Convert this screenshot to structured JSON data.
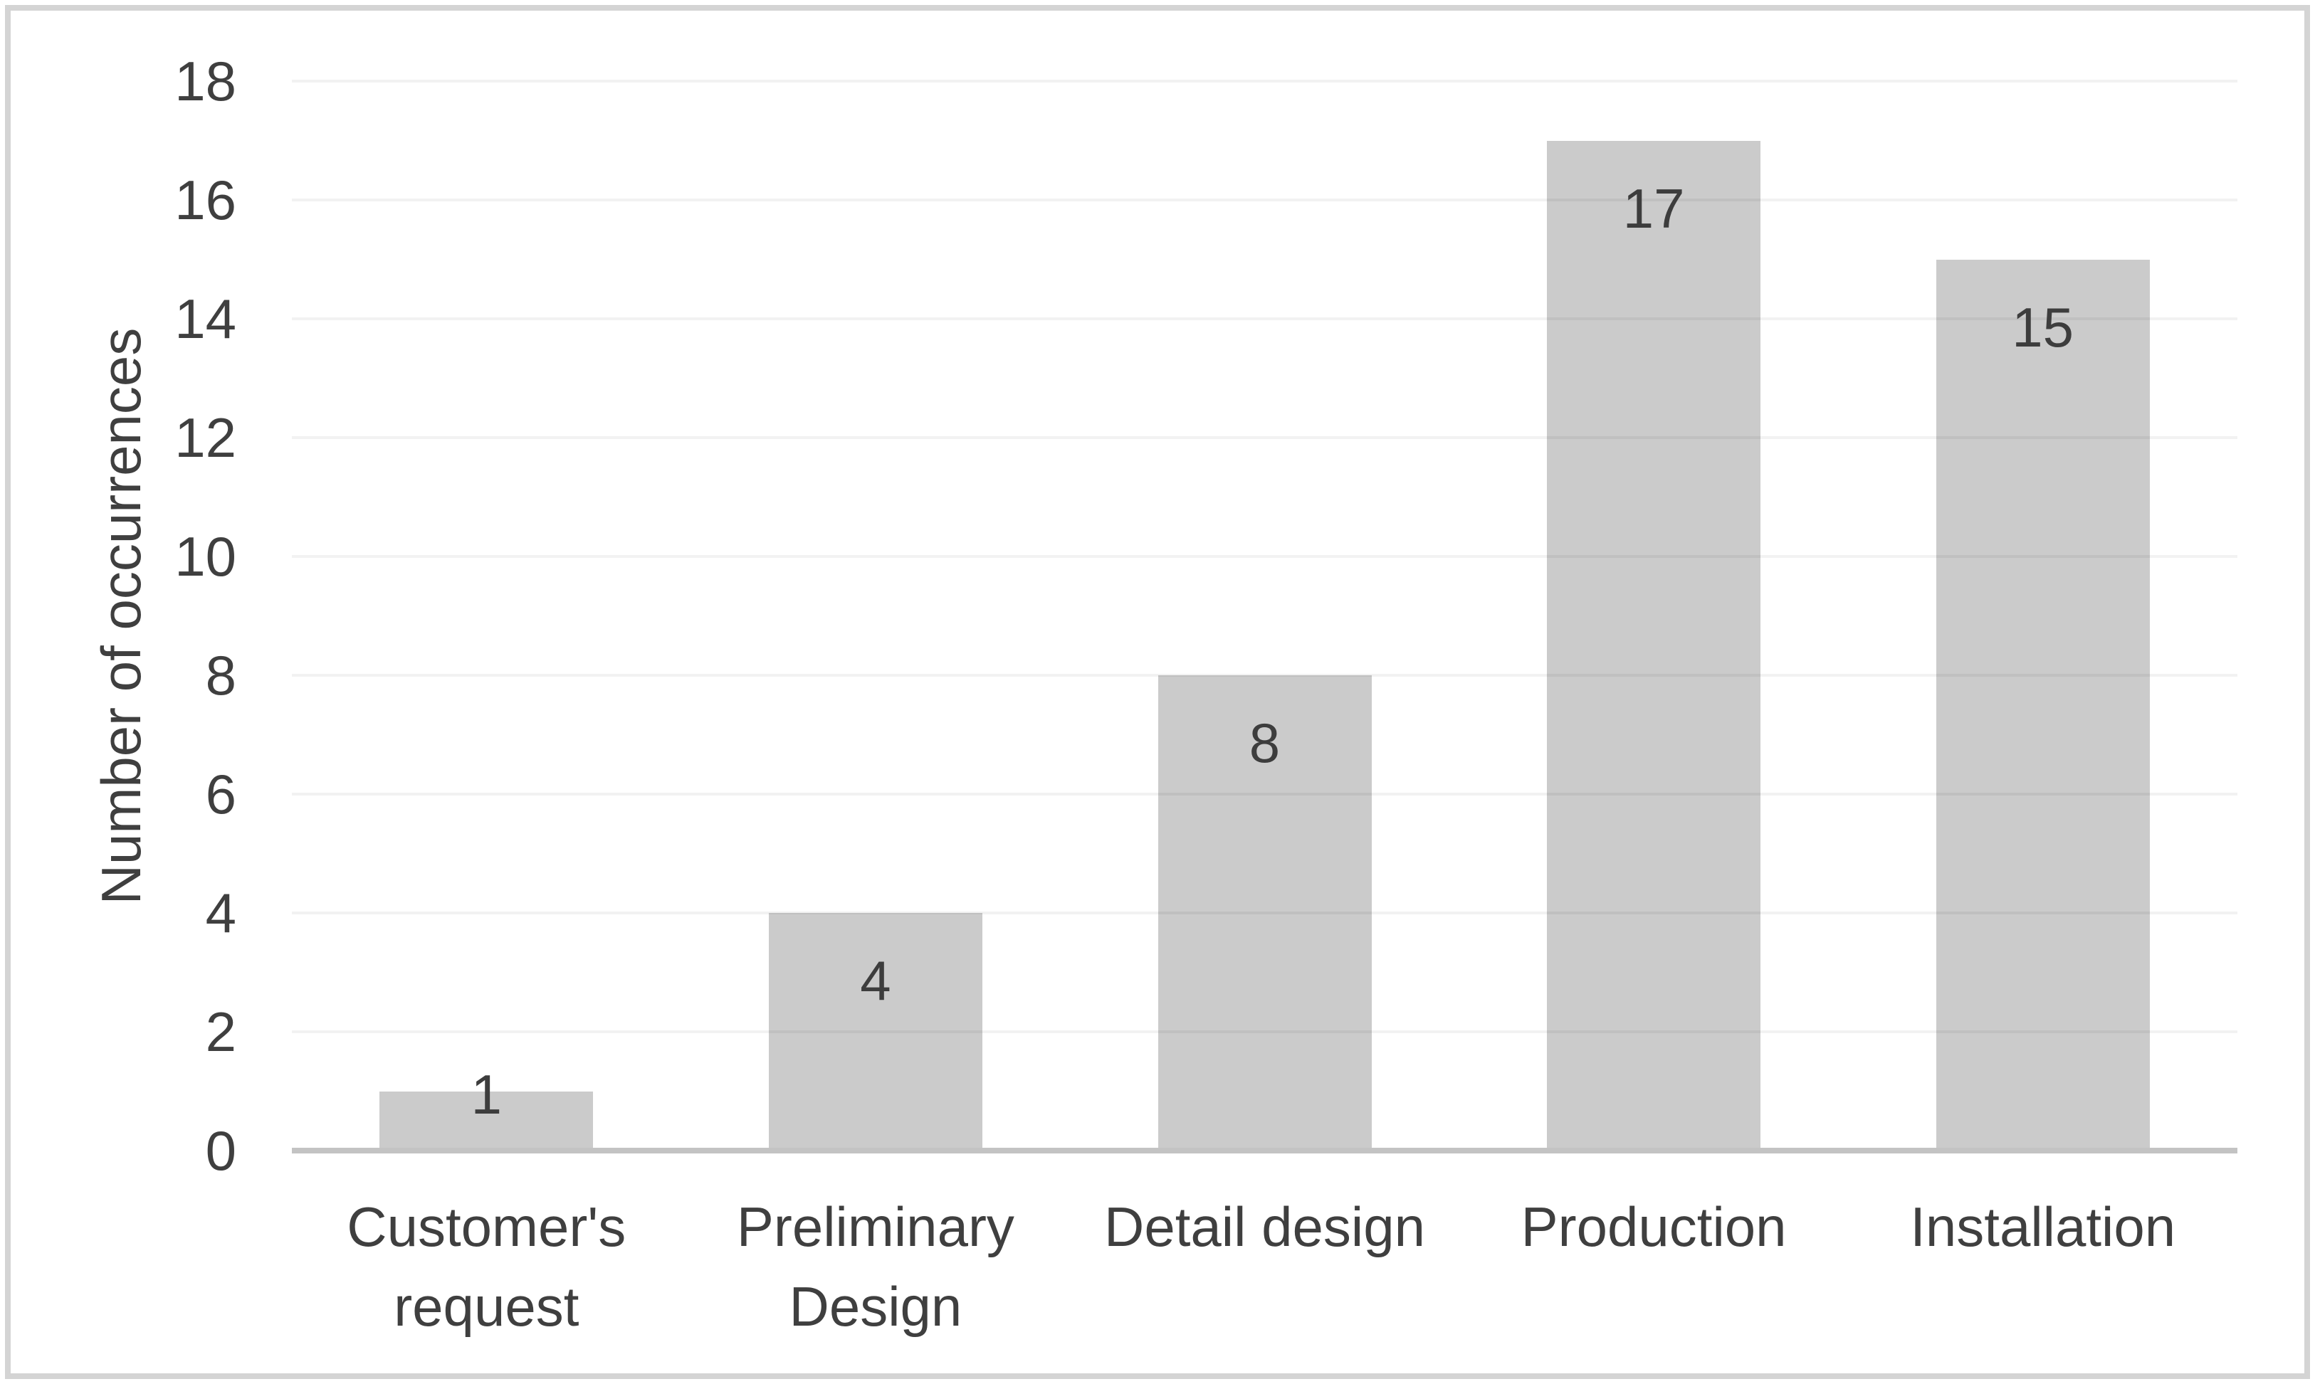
{
  "chart_data": {
    "type": "bar",
    "categories": [
      "Customer's request",
      "Preliminary Design",
      "Detail design",
      "Production",
      "Installation"
    ],
    "values": [
      1,
      4,
      8,
      17,
      15
    ],
    "data_labels": [
      "1",
      "4",
      "8",
      "17",
      "15"
    ],
    "title": "",
    "xlabel": "",
    "ylabel": "Number of occurrences",
    "ylim": [
      0,
      18
    ],
    "yticks": [
      0,
      2,
      4,
      6,
      8,
      10,
      12,
      14,
      16,
      18
    ],
    "grid": true,
    "legend_position": "none",
    "bar_color": "#cbcbcb",
    "text_color": "#3f3f3f",
    "gridline_color": "rgba(0,0,0,0.05)",
    "axis_line_color": "#c3c3c3",
    "frame_border_color": "#d4d4d4",
    "background_color": "#ffffff"
  }
}
